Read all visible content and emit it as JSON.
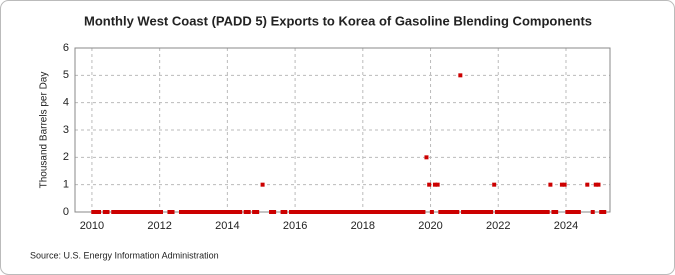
{
  "chart_data": {
    "type": "scatter",
    "title": "Monthly West Coast (PADD 5) Exports to Korea of Gasoline Blending Components",
    "y_label": "Thousand Barrels per Day",
    "source": "Source: U.S. Energy Information Administration",
    "color": "#cc0000",
    "grid": true,
    "xlim": [
      2009.5,
      2025.3
    ],
    "xticks": [
      2010,
      2012,
      2014,
      2016,
      2018,
      2020,
      2022,
      2024
    ],
    "ylim": [
      0,
      6
    ],
    "yticks": [
      0,
      1,
      2,
      3,
      4,
      5,
      6
    ],
    "x": [
      2010.04,
      2010.13,
      2010.21,
      2010.38,
      2010.46,
      2010.63,
      2010.71,
      2010.79,
      2010.88,
      2010.96,
      2011.04,
      2011.13,
      2011.21,
      2011.29,
      2011.38,
      2011.46,
      2011.54,
      2011.63,
      2011.71,
      2011.79,
      2011.88,
      2011.96,
      2012.04,
      2012.29,
      2012.38,
      2012.63,
      2012.71,
      2012.79,
      2012.88,
      2012.96,
      2013.04,
      2013.13,
      2013.21,
      2013.29,
      2013.38,
      2013.46,
      2013.54,
      2013.63,
      2013.71,
      2013.79,
      2013.88,
      2013.96,
      2014.04,
      2014.13,
      2014.21,
      2014.29,
      2014.38,
      2014.54,
      2014.63,
      2014.79,
      2014.88,
      2015.04,
      2015.29,
      2015.38,
      2015.63,
      2015.71,
      2015.88,
      2015.96,
      2016.04,
      2016.13,
      2016.21,
      2016.29,
      2016.38,
      2016.46,
      2016.54,
      2016.63,
      2016.71,
      2016.79,
      2016.88,
      2016.96,
      2017.04,
      2017.13,
      2017.21,
      2017.29,
      2017.38,
      2017.46,
      2017.54,
      2017.63,
      2017.71,
      2017.79,
      2017.88,
      2017.96,
      2018.04,
      2018.13,
      2018.21,
      2018.29,
      2018.38,
      2018.46,
      2018.54,
      2018.63,
      2018.71,
      2018.79,
      2018.88,
      2018.96,
      2019.04,
      2019.13,
      2019.21,
      2019.29,
      2019.38,
      2019.46,
      2019.54,
      2019.63,
      2019.71,
      2019.79,
      2019.88,
      2019.96,
      2020.04,
      2020.13,
      2020.21,
      2020.29,
      2020.38,
      2020.46,
      2020.54,
      2020.63,
      2020.71,
      2020.79,
      2020.88,
      2020.96,
      2021.04,
      2021.13,
      2021.21,
      2021.29,
      2021.38,
      2021.46,
      2021.54,
      2021.63,
      2021.71,
      2021.79,
      2021.88,
      2021.96,
      2022.04,
      2022.13,
      2022.21,
      2022.29,
      2022.38,
      2022.46,
      2022.54,
      2022.63,
      2022.71,
      2022.79,
      2022.88,
      2022.96,
      2023.04,
      2023.13,
      2023.21,
      2023.29,
      2023.38,
      2023.46,
      2023.54,
      2023.63,
      2023.71,
      2023.88,
      2023.96,
      2024.04,
      2024.13,
      2024.21,
      2024.29,
      2024.38,
      2024.63,
      2024.79,
      2024.88,
      2024.96,
      2025.04,
      2025.13
    ],
    "values": [
      0,
      0,
      0,
      0,
      0,
      0,
      0,
      0,
      0,
      0,
      0,
      0,
      0,
      0,
      0,
      0,
      0,
      0,
      0,
      0,
      0,
      0,
      0,
      0,
      0,
      0,
      0,
      0,
      0,
      0,
      0,
      0,
      0,
      0,
      0,
      0,
      0,
      0,
      0,
      0,
      0,
      0,
      0,
      0,
      0,
      0,
      0,
      0,
      0,
      0,
      0,
      1,
      0,
      0,
      0,
      0,
      0,
      0,
      0,
      0,
      0,
      0,
      0,
      0,
      0,
      0,
      0,
      0,
      0,
      0,
      0,
      0,
      0,
      0,
      0,
      0,
      0,
      0,
      0,
      0,
      0,
      0,
      0,
      0,
      0,
      0,
      0,
      0,
      0,
      0,
      0,
      0,
      0,
      0,
      0,
      0,
      0,
      0,
      0,
      0,
      0,
      0,
      0,
      0,
      2,
      1,
      0,
      1,
      1,
      0,
      0,
      0,
      0,
      0,
      0,
      0,
      5,
      0,
      0,
      0,
      0,
      0,
      0,
      0,
      0,
      0,
      0,
      0,
      1,
      0,
      0,
      0,
      0,
      0,
      0,
      0,
      0,
      0,
      0,
      0,
      0,
      0,
      0,
      0,
      0,
      0,
      0,
      0,
      1,
      0,
      0,
      1,
      1,
      0,
      0,
      0,
      0,
      0,
      1,
      0,
      1,
      1,
      0,
      0
    ]
  }
}
